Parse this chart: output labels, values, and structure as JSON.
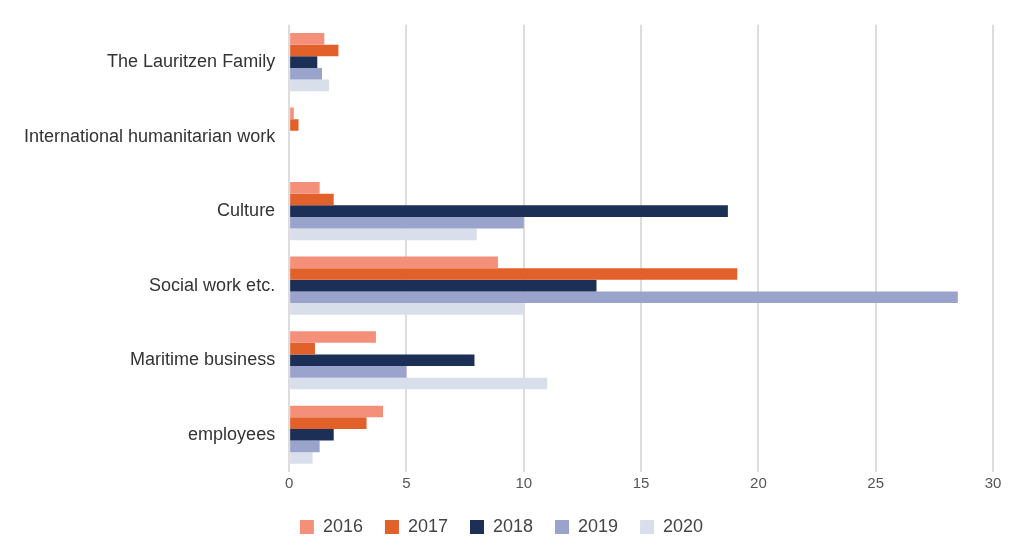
{
  "chart_data": {
    "type": "bar",
    "orientation": "horizontal",
    "categories": [
      "The Lauritzen Family",
      "International humanitarian work",
      "Culture",
      "Social work etc.",
      "Maritime business",
      "employees"
    ],
    "series": [
      {
        "name": "2016",
        "color": "#f4907a",
        "values": [
          1.5,
          0.2,
          1.3,
          8.9,
          3.7,
          4
        ]
      },
      {
        "name": "2017",
        "color": "#e2612b",
        "values": [
          2.1,
          0.4,
          1.9,
          19.1,
          1.1,
          3.3
        ]
      },
      {
        "name": "2018",
        "color": "#1b2f57",
        "values": [
          1.2,
          null,
          18.7,
          13.1,
          7.9,
          1.9
        ]
      },
      {
        "name": "2019",
        "color": "#9aa3cc",
        "values": [
          1.4,
          null,
          10,
          28.5,
          5,
          1.3
        ]
      },
      {
        "name": "2020",
        "color": "#d9dfea",
        "values": [
          1.7,
          0,
          8,
          10,
          11,
          1
        ]
      }
    ],
    "xlim": [
      0,
      30
    ],
    "xticks": [
      0,
      5,
      10,
      15,
      20,
      25,
      30
    ],
    "grid": "x",
    "legend": "bottom"
  }
}
